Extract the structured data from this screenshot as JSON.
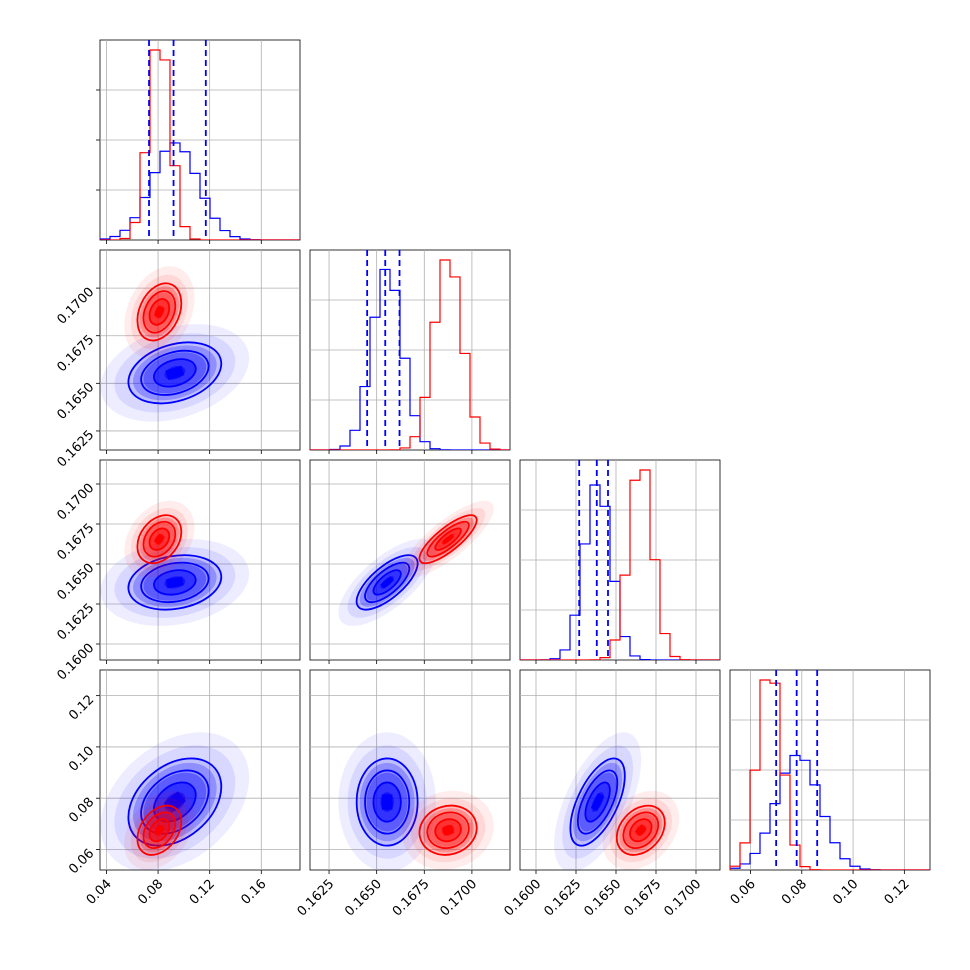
{
  "figure": {
    "type": "corner-plot"
  },
  "colors": {
    "blue": "#0000ff",
    "red": "#ff0000"
  },
  "chart_data": {
    "type": "corner",
    "parameters": 4,
    "series": [
      {
        "color": "#0000ff",
        "means": [
          0.093,
          0.16555,
          0.16385,
          0.0785
        ],
        "sds": [
          0.018,
          0.0008,
          0.00085,
          0.0085
        ],
        "corr": {
          "1-2": 0.3,
          "1-3": 0.2,
          "1-4": 0.35,
          "2-3": 0.7,
          "2-4": 0.0,
          "3-4": 0.6
        }
      },
      {
        "color": "#ff0000",
        "means": [
          0.081,
          0.16875,
          0.16655,
          0.0675
        ],
        "sds": [
          0.0085,
          0.00075,
          0.00075,
          0.0048
        ],
        "corr": {
          "1-2": 0.3,
          "1-3": 0.3,
          "1-4": 0.35,
          "2-3": 0.8,
          "2-4": 0.1,
          "3-4": 0.3
        }
      }
    ],
    "quantiles_blue": [
      [
        0.073,
        0.092,
        0.117
      ],
      [
        0.1645,
        0.16545,
        0.1662
      ],
      [
        0.1627,
        0.1638,
        0.1645
      ],
      [
        0.07,
        0.078,
        0.086
      ]
    ],
    "ranges": [
      [
        0.035,
        0.19
      ],
      [
        0.1615,
        0.172
      ],
      [
        0.159,
        0.1715
      ],
      [
        0.052,
        0.13
      ]
    ],
    "ticks": [
      {
        "values": [
          0.04,
          0.08,
          0.12,
          0.16
        ],
        "labels": [
          "0.04",
          "0.08",
          "0.12",
          "0.16"
        ]
      },
      {
        "values": [
          0.1625,
          0.165,
          0.1675,
          0.17
        ],
        "labels": [
          "0.1625",
          "0.1650",
          "0.1675",
          "0.1700"
        ]
      },
      {
        "values": [
          0.16,
          0.1625,
          0.165,
          0.1675,
          0.17
        ],
        "labels": [
          "0.1600",
          "0.1625",
          "0.1650",
          "0.1675",
          "0.1700"
        ]
      },
      {
        "values": [
          0.06,
          0.08,
          0.1,
          0.12
        ],
        "labels": [
          "0.06",
          "0.08",
          "0.10",
          "0.12"
        ]
      }
    ],
    "grid": true
  }
}
